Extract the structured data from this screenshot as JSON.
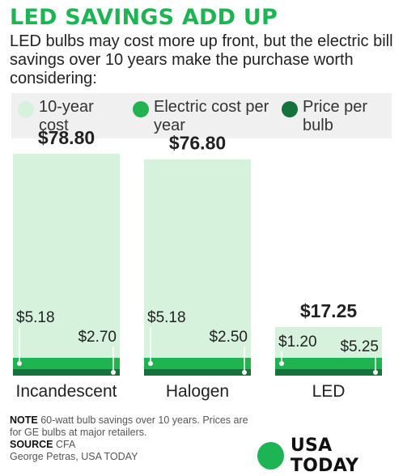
{
  "title": "LED SAVINGS ADD UP",
  "subtitle": "LED bulbs may cost more up front, but the electric bill savings over 10 years make the purchase worth considering:",
  "colors": {
    "ten_year": "#d6f1dc",
    "electric": "#21b34f",
    "price": "#14733a"
  },
  "legend": [
    {
      "label": "10-year cost",
      "color": "#d6f1dc"
    },
    {
      "label": "Electric cost per year",
      "color": "#21b34f"
    },
    {
      "label": "Price per bulb",
      "color": "#14733a"
    }
  ],
  "chart_data": {
    "type": "bar",
    "categories": [
      "Incandescent",
      "Halogen",
      "LED"
    ],
    "series": [
      {
        "name": "10-year cost",
        "values": [
          78.8,
          76.8,
          17.25
        ],
        "labels": [
          "$78.80",
          "$76.80",
          "$17.25"
        ]
      },
      {
        "name": "Electric cost per year",
        "values": [
          5.18,
          5.18,
          1.2
        ],
        "labels": [
          "$5.18",
          "$5.18",
          "$1.20"
        ]
      },
      {
        "name": "Price per bulb",
        "values": [
          2.7,
          2.5,
          5.25
        ],
        "labels": [
          "$2.70",
          "$2.50",
          "$5.25"
        ]
      }
    ],
    "title": "LED SAVINGS ADD UP",
    "xlabel": "",
    "ylabel": "",
    "ylim": [
      0,
      80
    ],
    "grid": false
  },
  "footer": {
    "note_label": "NOTE",
    "note_text": "60-watt bulb savings over 10 years. Prices are for GE bulbs at major retailers.",
    "source_label": "SOURCE",
    "source_text": "CFA",
    "credit": "George Petras, USA TODAY"
  },
  "logo": {
    "text": "USA TODAY"
  }
}
